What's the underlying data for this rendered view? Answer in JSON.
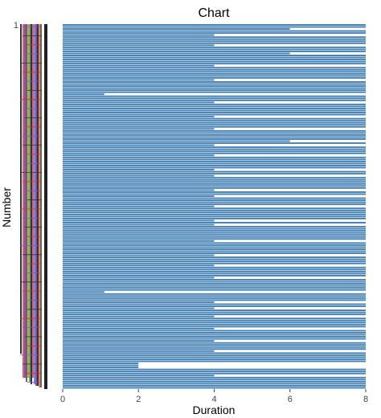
{
  "chart_data": {
    "type": "bar",
    "orientation": "horizontal",
    "title": "Chart",
    "xlabel": "Duration",
    "ylabel": "Number",
    "xlim": [
      0,
      8
    ],
    "x_ticks": [
      "0",
      "2",
      "4",
      "6",
      "8"
    ],
    "y_ticks": [
      "1"
    ],
    "grid": false,
    "bar_color": "#4682b4",
    "bar_count": 180,
    "full_band_end": 2,
    "segment_breaks": [
      2,
      4
    ],
    "values_sampled": [
      8,
      8,
      6,
      8,
      8,
      4,
      8,
      8,
      8,
      8,
      4,
      8,
      8,
      8,
      6,
      8,
      8,
      8,
      8,
      8,
      4,
      8,
      8,
      8,
      8,
      8,
      8,
      4,
      8,
      8,
      8,
      8,
      8,
      8,
      1.1,
      8,
      8,
      8,
      4,
      8,
      8,
      8,
      8,
      8,
      8,
      4,
      8,
      8,
      8,
      8,
      8,
      4,
      8,
      8,
      8,
      8,
      8,
      6,
      8,
      4,
      8,
      8,
      8,
      8,
      4,
      8,
      8,
      8,
      8,
      8,
      8,
      4,
      8,
      8,
      4,
      8,
      8,
      8,
      8,
      8,
      8,
      4,
      8,
      8,
      4,
      8,
      8,
      8,
      8,
      4,
      8,
      8,
      8,
      8,
      8,
      8,
      4,
      8,
      4,
      8,
      8,
      8,
      8,
      8,
      8,
      8,
      4,
      8,
      8,
      8,
      8,
      8,
      8,
      4,
      8,
      8,
      8,
      8,
      4,
      8,
      8,
      8,
      8,
      8,
      4,
      8,
      8,
      8,
      8,
      8,
      8,
      1.1,
      8,
      8,
      8,
      8,
      4,
      8,
      8,
      4,
      8,
      8,
      8,
      4,
      8,
      8,
      8,
      8,
      8,
      4,
      8,
      8,
      8,
      8,
      8,
      4,
      8,
      8,
      8,
      8,
      4,
      8,
      8,
      8,
      8,
      8,
      2,
      2,
      2,
      8,
      8,
      8,
      4,
      8,
      8,
      8,
      8,
      8,
      8
    ]
  }
}
